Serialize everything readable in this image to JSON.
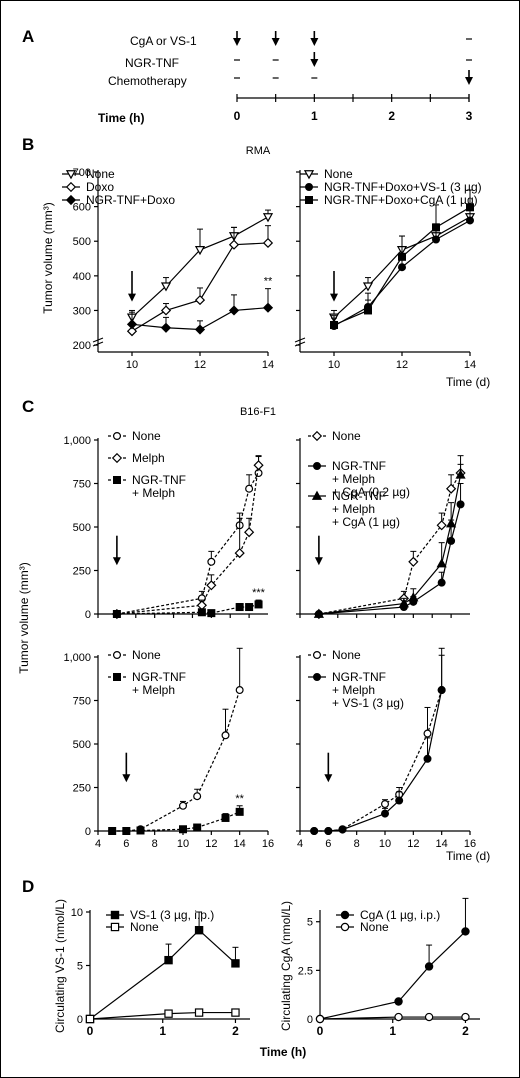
{
  "panels": {
    "A": {
      "letter": "A",
      "rows": [
        "CgA or VS-1",
        "NGR-TNF",
        "Chemotherapy"
      ],
      "time_label": "Time (h)",
      "time_ticks": [
        "0",
        "1",
        "2",
        "3"
      ],
      "time_values": [
        0,
        1,
        2,
        3
      ],
      "schedule": [
        {
          "row": "CgA or VS-1",
          "events": [
            {
              "t": 0,
              "mark": "arrow"
            },
            {
              "t": 0.5,
              "mark": "arrow"
            },
            {
              "t": 1,
              "mark": "arrow"
            },
            {
              "t": 3,
              "mark": "dash"
            }
          ]
        },
        {
          "row": "NGR-TNF",
          "events": [
            {
              "t": 0,
              "mark": "dash"
            },
            {
              "t": 0.5,
              "mark": "dash"
            },
            {
              "t": 1,
              "mark": "arrow"
            },
            {
              "t": 3,
              "mark": "dash"
            }
          ]
        },
        {
          "row": "Chemotherapy",
          "events": [
            {
              "t": 0,
              "mark": "dash"
            },
            {
              "t": 0.5,
              "mark": "dash"
            },
            {
              "t": 1,
              "mark": "dash"
            },
            {
              "t": 3,
              "mark": "arrow"
            }
          ]
        }
      ]
    },
    "B": {
      "letter": "B",
      "title": "RMA",
      "ylabel": "Tumor volume (mm³)",
      "xlabel": "Time (d)"
    },
    "C": {
      "letter": "C",
      "title": "B16-F1",
      "ylabel": "Tumor volume (mm³)",
      "xlabel": "Time (d)"
    },
    "D": {
      "letter": "D",
      "xlabel": "Time (h)"
    }
  },
  "chart_data": [
    {
      "id": "B-left",
      "type": "line",
      "xlim": [
        9,
        14
      ],
      "ylim": [
        180,
        700
      ],
      "axis_break": true,
      "x_ticks": [
        10,
        12,
        14
      ],
      "x_tick_labels": [
        "10",
        "12",
        "14"
      ],
      "y_ticks": [
        200,
        300,
        400,
        500,
        600,
        700
      ],
      "y_tick_labels": [
        "200",
        "300",
        "400",
        "500",
        "600",
        "700"
      ],
      "legend_position": "top-left",
      "treatment_arrow_x": 10,
      "annotations": [
        {
          "x": 14,
          "text": "**"
        }
      ],
      "series": [
        {
          "name": "None",
          "marker": "tri-down-open",
          "dash": "solid",
          "x": [
            10,
            11,
            12,
            13,
            14
          ],
          "y": [
            280,
            370,
            475,
            515,
            570
          ],
          "err": [
            20,
            25,
            60,
            25,
            20
          ]
        },
        {
          "name": "Doxo",
          "marker": "diamond-open",
          "dash": "solid",
          "x": [
            10,
            11,
            12,
            13,
            14
          ],
          "y": [
            240,
            300,
            330,
            490,
            495
          ],
          "err": [
            25,
            20,
            35,
            50,
            50
          ]
        },
        {
          "name": "NGR-TNF+Doxo",
          "marker": "diamond-filled",
          "dash": "solid",
          "x": [
            10,
            11,
            12,
            13,
            14
          ],
          "y": [
            260,
            250,
            245,
            300,
            308
          ],
          "err": [
            35,
            30,
            25,
            45,
            55
          ]
        }
      ]
    },
    {
      "id": "B-right",
      "type": "line",
      "xlim": [
        9,
        14
      ],
      "ylim": [
        180,
        700
      ],
      "axis_break": true,
      "x_ticks": [
        10,
        12,
        14
      ],
      "x_tick_labels": [
        "10",
        "12",
        "14"
      ],
      "y_ticks": [
        200,
        300,
        400,
        500,
        600,
        700
      ],
      "y_tick_labels": [],
      "legend_position": "top-left",
      "treatment_arrow_x": 10,
      "annotations": [],
      "series": [
        {
          "name": "None",
          "marker": "tri-down-open",
          "dash": "solid",
          "x": [
            10,
            11,
            12,
            13,
            14
          ],
          "y": [
            280,
            370,
            475,
            515,
            570
          ],
          "err": [
            20,
            25,
            40,
            30,
            20
          ]
        },
        {
          "name": "NGR-TNF+Doxo+VS-1 (3 µg)",
          "marker": "circle-filled",
          "dash": "solid",
          "x": [
            10,
            11,
            12,
            13,
            14
          ],
          "y": [
            255,
            310,
            425,
            505,
            560
          ],
          "err": [
            30,
            40,
            35,
            45,
            35
          ]
        },
        {
          "name": "NGR-TNF+Doxo+CgA (1 µg)",
          "marker": "square-filled",
          "dash": "solid",
          "x": [
            10,
            11,
            12,
            13,
            14
          ],
          "y": [
            258,
            300,
            455,
            540,
            598
          ],
          "err": [
            20,
            30,
            60,
            65,
            50
          ]
        }
      ]
    },
    {
      "id": "C-top-left",
      "type": "line",
      "xlim": [
        4,
        22
      ],
      "ylim": [
        0,
        1000
      ],
      "x_ticks": [
        4,
        6,
        8,
        10,
        12,
        14,
        16,
        18,
        20
      ],
      "x_tick_labels": [],
      "y_ticks": [
        0,
        250,
        500,
        750,
        1000
      ],
      "y_tick_labels": [
        "0",
        "250",
        "500",
        "750",
        "1,000"
      ],
      "legend_position": "top-left",
      "treatment_arrow_x": 6,
      "annotations": [
        {
          "x": 21,
          "text": "***"
        }
      ],
      "series": [
        {
          "name": "None",
          "marker": "circle-open",
          "dash": "dashed",
          "x": [
            6,
            15,
            16,
            19,
            20,
            21
          ],
          "y": [
            0,
            90,
            300,
            510,
            720,
            810
          ],
          "err": [
            0,
            40,
            60,
            70,
            80,
            100
          ]
        },
        {
          "name": "Melph",
          "marker": "diamond-open",
          "dash": "dashed",
          "x": [
            6,
            15,
            16,
            19,
            20,
            21
          ],
          "y": [
            0,
            50,
            165,
            350,
            470,
            855
          ],
          "err": [
            0,
            30,
            60,
            200,
            80,
            50
          ]
        },
        {
          "name": "NGR-TNF\n+ Melph",
          "marker": "square-filled",
          "dash": "dashed",
          "x": [
            6,
            15,
            16,
            19,
            20,
            21
          ],
          "y": [
            0,
            10,
            5,
            40,
            40,
            55
          ],
          "err": [
            0,
            5,
            5,
            20,
            15,
            25
          ]
        }
      ]
    },
    {
      "id": "C-top-right",
      "type": "line",
      "xlim": [
        4,
        22
      ],
      "ylim": [
        0,
        1000
      ],
      "x_ticks": [
        4,
        6,
        8,
        10,
        12,
        14,
        16,
        18,
        20
      ],
      "x_tick_labels": [],
      "y_ticks": [
        0,
        250,
        500,
        750,
        1000
      ],
      "y_tick_labels": [],
      "legend_position": "top-left",
      "treatment_arrow_x": 6,
      "annotations": [],
      "series": [
        {
          "name": "None",
          "marker": "diamond-open",
          "dash": "dashed",
          "x": [
            6,
            15,
            16,
            19,
            20,
            21
          ],
          "y": [
            0,
            90,
            300,
            510,
            720,
            810
          ],
          "err": [
            0,
            40,
            60,
            70,
            80,
            100
          ]
        },
        {
          "name": "NGR-TNF\n+ Melph\n+ CgA (0.2 µg)",
          "marker": "circle-filled",
          "dash": "solid",
          "x": [
            6,
            15,
            16,
            19,
            20,
            21
          ],
          "y": [
            0,
            40,
            70,
            180,
            420,
            630
          ],
          "err": [
            0,
            20,
            30,
            60,
            120,
            120
          ]
        },
        {
          "name": "NGR-TNF\n+ Melph\n+ CgA (1 µg)",
          "marker": "triangle-filled",
          "dash": "solid",
          "x": [
            6,
            15,
            16,
            19,
            20,
            21
          ],
          "y": [
            0,
            60,
            95,
            290,
            520,
            800
          ],
          "err": [
            0,
            30,
            50,
            120,
            120,
            60
          ]
        }
      ]
    },
    {
      "id": "C-bottom-left",
      "type": "line",
      "xlim": [
        4,
        16
      ],
      "ylim": [
        0,
        1000
      ],
      "x_ticks": [
        4,
        6,
        8,
        10,
        12,
        14,
        16
      ],
      "x_tick_labels": [
        "4",
        "6",
        "8",
        "10",
        "12",
        "14",
        "16"
      ],
      "y_ticks": [
        0,
        250,
        500,
        750,
        1000
      ],
      "y_tick_labels": [
        "0",
        "250",
        "500",
        "750",
        "1,000"
      ],
      "legend_position": "top-left",
      "treatment_arrow_x": 6,
      "annotations": [
        {
          "x": 14,
          "text": "**"
        }
      ],
      "series": [
        {
          "name": "None",
          "marker": "circle-open",
          "dash": "dashed",
          "x": [
            5,
            6,
            7,
            10,
            11,
            13,
            14
          ],
          "y": [
            0,
            0,
            10,
            145,
            200,
            550,
            810
          ],
          "err": [
            0,
            0,
            5,
            25,
            40,
            150,
            240
          ]
        },
        {
          "name": "NGR-TNF\n+ Melph",
          "marker": "square-filled",
          "dash": "dashed",
          "x": [
            5,
            6,
            7,
            10,
            11,
            13,
            14
          ],
          "y": [
            0,
            0,
            3,
            10,
            20,
            75,
            110
          ],
          "err": [
            0,
            0,
            2,
            8,
            10,
            25,
            35
          ]
        }
      ]
    },
    {
      "id": "C-bottom-right",
      "type": "line",
      "xlim": [
        4,
        16
      ],
      "ylim": [
        0,
        1000
      ],
      "x_ticks": [
        4,
        6,
        8,
        10,
        12,
        14,
        16
      ],
      "x_tick_labels": [
        "4",
        "6",
        "8",
        "10",
        "12",
        "14",
        "16"
      ],
      "y_ticks": [
        0,
        250,
        500,
        750,
        1000
      ],
      "y_tick_labels": [],
      "legend_position": "top-left",
      "treatment_arrow_x": 6,
      "annotations": [],
      "series": [
        {
          "name": "None",
          "marker": "circle-open",
          "dash": "dashed",
          "x": [
            5,
            6,
            7,
            10,
            11,
            13,
            14
          ],
          "y": [
            0,
            0,
            10,
            155,
            210,
            560,
            810
          ],
          "err": [
            0,
            0,
            5,
            25,
            40,
            150,
            240
          ]
        },
        {
          "name": "NGR-TNF\n+ Melph\n+ VS-1 (3 µg)",
          "marker": "circle-filled",
          "dash": "solid",
          "x": [
            5,
            6,
            7,
            10,
            11,
            13,
            14
          ],
          "y": [
            0,
            0,
            8,
            100,
            175,
            415,
            810
          ],
          "err": [
            0,
            0,
            4,
            30,
            50,
            120,
            200
          ]
        }
      ]
    },
    {
      "id": "D-left",
      "type": "line",
      "ylabel": "Circulating VS-1 (nmol/L)",
      "xlim": [
        0,
        2.2
      ],
      "ylim": [
        0,
        10
      ],
      "x_ticks": [
        0,
        1,
        2
      ],
      "x_tick_labels": [
        "0",
        "1",
        "2"
      ],
      "y_ticks": [
        0,
        5,
        10
      ],
      "y_tick_labels": [
        "0",
        "5",
        "10"
      ],
      "legend_position": "top-left",
      "annotations": [],
      "series": [
        {
          "name": "VS-1 (3 µg, i.p.)",
          "marker": "square-filled",
          "dash": "solid",
          "x": [
            0,
            1.08,
            1.5,
            2
          ],
          "y": [
            0,
            5.5,
            8.3,
            5.2
          ],
          "err": [
            0,
            1.5,
            1.7,
            1.5
          ]
        },
        {
          "name": "None",
          "marker": "square-open",
          "dash": "solid",
          "x": [
            0,
            1.08,
            1.5,
            2
          ],
          "y": [
            0,
            0.5,
            0.6,
            0.6
          ],
          "err": [
            0,
            0,
            0,
            0
          ]
        }
      ]
    },
    {
      "id": "D-right",
      "type": "line",
      "ylabel": "Circulating CgA (nmol/L)",
      "xlim": [
        0,
        2.2
      ],
      "ylim": [
        0,
        5.5
      ],
      "x_ticks": [
        0,
        1,
        2
      ],
      "x_tick_labels": [
        "0",
        "1",
        "2"
      ],
      "y_ticks": [
        0,
        2.5,
        5
      ],
      "y_tick_labels": [
        "0",
        "2.5",
        "5"
      ],
      "legend_position": "top-left",
      "annotations": [],
      "series": [
        {
          "name": "CgA (1 µg, i.p.)",
          "marker": "circle-filled",
          "dash": "solid",
          "x": [
            0,
            1.08,
            1.5,
            2
          ],
          "y": [
            0,
            0.9,
            2.7,
            4.5
          ],
          "err": [
            0,
            0,
            1.1,
            1.7
          ]
        },
        {
          "name": "None",
          "marker": "circle-open",
          "dash": "solid",
          "x": [
            0,
            1.08,
            1.5,
            2
          ],
          "y": [
            0,
            0.1,
            0.1,
            0.1
          ],
          "err": [
            0,
            0,
            0,
            0
          ]
        }
      ]
    }
  ]
}
